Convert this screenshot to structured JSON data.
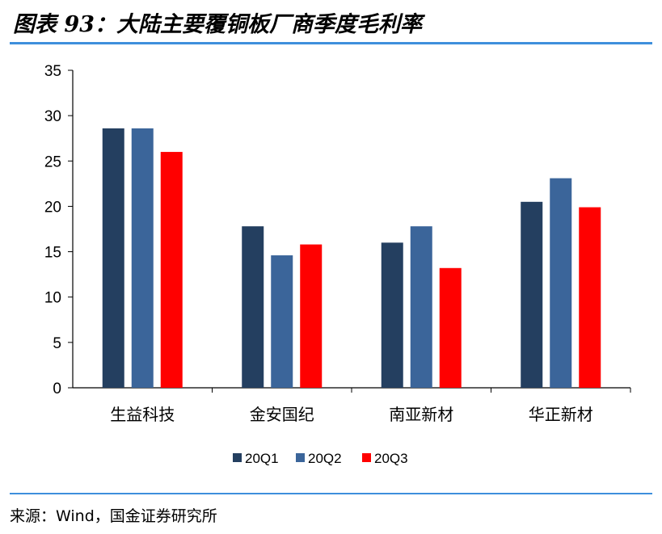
{
  "header": {
    "title": "图表 93：大陆主要覆铜板厂商季度毛利率"
  },
  "footer": {
    "source": "来源：Wind，国金证券研究所"
  },
  "colors": {
    "accent_rule": "#3e8fdc"
  },
  "chart_data": {
    "type": "bar",
    "title": "",
    "xlabel": "",
    "ylabel": "",
    "categories": [
      "生益科技",
      "金安国纪",
      "南亚新材",
      "华正新材"
    ],
    "series": [
      {
        "name": "20Q1",
        "color": "#243f60",
        "values": [
          28.6,
          17.8,
          16.0,
          20.5
        ]
      },
      {
        "name": "20Q2",
        "color": "#3b659a",
        "values": [
          28.6,
          14.6,
          17.8,
          23.1
        ]
      },
      {
        "name": "20Q3",
        "color": "#ff0000",
        "values": [
          26.0,
          15.8,
          13.2,
          19.9
        ]
      }
    ],
    "ylim": [
      0,
      35
    ],
    "yticks": [
      0,
      5,
      10,
      15,
      20,
      25,
      30,
      35
    ],
    "grid": false,
    "legend": "bottom-center"
  }
}
